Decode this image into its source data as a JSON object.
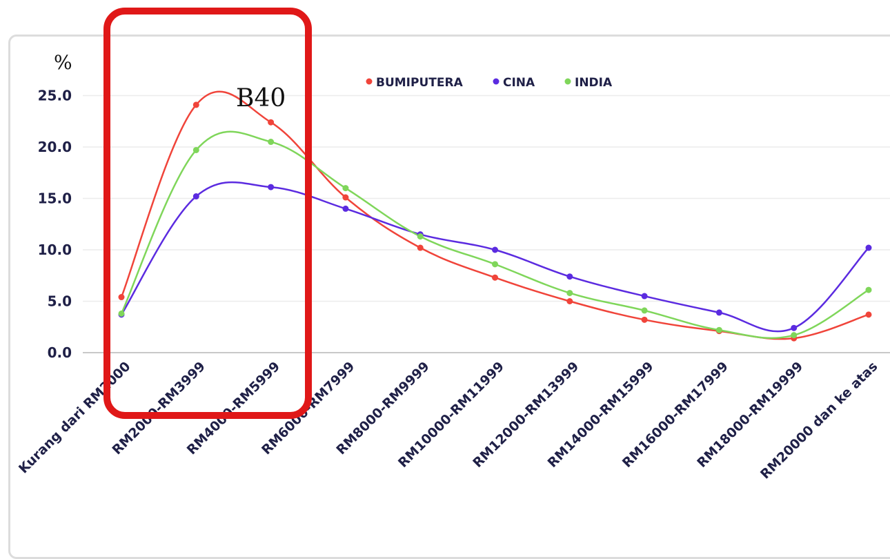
{
  "chart_data": {
    "type": "line",
    "ylabel": "%",
    "ylim": [
      0,
      25
    ],
    "yticks": [
      "25.0",
      "20.0",
      "15.0",
      "10.0",
      "5.0",
      "0.0"
    ],
    "ytick_values": [
      25,
      20,
      15,
      10,
      5,
      0
    ],
    "categories": [
      "Kurang dari RM2000",
      "RM2000-RM3999",
      "RM4000-RM5999",
      "RM6000-RM7999",
      "RM8000-RM9999",
      "RM10000-RM11999",
      "RM12000-RM13999",
      "RM14000-RM15999",
      "RM16000-RM17999",
      "RM18000-RM19999",
      "RM20000 dan ke atas"
    ],
    "series": [
      {
        "name": "BUMIPUTERA",
        "color": "#f0443a",
        "values": [
          5.4,
          24.1,
          22.4,
          15.1,
          10.2,
          7.3,
          5.0,
          3.2,
          2.1,
          1.4,
          3.7
        ]
      },
      {
        "name": "CINA",
        "color": "#5b2be0",
        "values": [
          3.7,
          15.2,
          16.1,
          14.0,
          11.5,
          10.0,
          7.4,
          5.5,
          3.9,
          2.4,
          10.2
        ]
      },
      {
        "name": "INDIA",
        "color": "#7fd65a",
        "values": [
          3.8,
          19.7,
          20.5,
          16.0,
          11.3,
          8.6,
          5.8,
          4.1,
          2.2,
          1.7,
          6.1
        ]
      }
    ],
    "legend": "top",
    "grid": true,
    "annotation": {
      "label": "B40",
      "highlight": "rectangle",
      "color": "#e01818",
      "categories": [
        "Kurang dari RM2000",
        "RM2000-RM3999",
        "RM4000-RM5999"
      ]
    }
  }
}
